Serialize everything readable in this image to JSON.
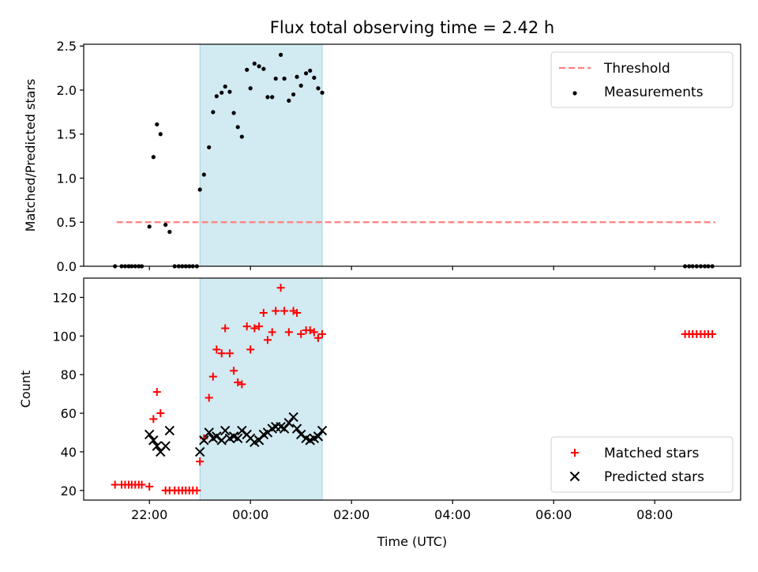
{
  "title": "Flux total observing time = 2.42 h",
  "chart_data": [
    {
      "type": "scatter",
      "ylabel": "Matched/Predicted stars",
      "xlabel": "",
      "x_axis": "time_utc_hours_from_midnight",
      "xlim": [
        -3.3,
        9.7
      ],
      "ylim": [
        0,
        2.52
      ],
      "x_ticks": [
        -2,
        0,
        2,
        4,
        6,
        8
      ],
      "y_ticks": [
        {
          "v": 0.0,
          "label": "0.0"
        },
        {
          "v": 0.5,
          "label": "0.5"
        },
        {
          "v": 1.0,
          "label": "1.0"
        },
        {
          "v": 1.5,
          "label": "1.5"
        },
        {
          "v": 2.0,
          "label": "2.0"
        },
        {
          "v": 2.5,
          "label": "2.5"
        }
      ],
      "shaded_region": {
        "x0": -1.0,
        "x1": 1.42,
        "color": "#add8e6"
      },
      "legend_position": "top-right",
      "threshold": {
        "name": "Threshold",
        "value": 0.5,
        "x_range": [
          -2.65,
          9.2
        ],
        "color": "#ff7f7f",
        "style": "dashed"
      },
      "series": [
        {
          "name": "Measurements",
          "marker": "dot",
          "color": "#000000",
          "points": [
            [
              -2.68,
              0
            ],
            [
              -2.55,
              0
            ],
            [
              -2.48,
              0
            ],
            [
              -2.41,
              0
            ],
            [
              -2.35,
              0
            ],
            [
              -2.28,
              0
            ],
            [
              -2.21,
              0
            ],
            [
              -2.15,
              0
            ],
            [
              -2.0,
              0.45
            ],
            [
              -1.92,
              1.24
            ],
            [
              -1.85,
              1.61
            ],
            [
              -1.78,
              1.5
            ],
            [
              -1.68,
              0.47
            ],
            [
              -1.6,
              0.39
            ],
            [
              -1.5,
              0
            ],
            [
              -1.42,
              0
            ],
            [
              -1.35,
              0
            ],
            [
              -1.28,
              0
            ],
            [
              -1.21,
              0
            ],
            [
              -1.14,
              0
            ],
            [
              -1.06,
              0
            ],
            [
              -1.0,
              0.87
            ],
            [
              -0.92,
              1.04
            ],
            [
              -0.82,
              1.35
            ],
            [
              -0.74,
              1.75
            ],
            [
              -0.67,
              1.93
            ],
            [
              -0.57,
              1.97
            ],
            [
              -0.5,
              2.04
            ],
            [
              -0.41,
              1.98
            ],
            [
              -0.33,
              1.74
            ],
            [
              -0.25,
              1.58
            ],
            [
              -0.17,
              1.47
            ],
            [
              -0.07,
              2.23
            ],
            [
              0.0,
              2.02
            ],
            [
              0.08,
              2.3
            ],
            [
              0.17,
              2.27
            ],
            [
              0.26,
              2.24
            ],
            [
              0.34,
              1.92
            ],
            [
              0.43,
              1.92
            ],
            [
              0.5,
              2.13
            ],
            [
              0.6,
              2.4
            ],
            [
              0.67,
              2.13
            ],
            [
              0.76,
              1.88
            ],
            [
              0.85,
              1.95
            ],
            [
              0.92,
              2.15
            ],
            [
              1.0,
              2.05
            ],
            [
              1.1,
              2.19
            ],
            [
              1.18,
              2.22
            ],
            [
              1.26,
              2.14
            ],
            [
              1.34,
              2.02
            ],
            [
              1.42,
              1.97
            ],
            [
              8.6,
              0
            ],
            [
              8.68,
              0
            ],
            [
              8.75,
              0
            ],
            [
              8.83,
              0
            ],
            [
              8.91,
              0
            ],
            [
              8.99,
              0
            ],
            [
              9.06,
              0
            ],
            [
              9.14,
              0
            ]
          ]
        }
      ]
    },
    {
      "type": "scatter",
      "ylabel": "Count",
      "xlabel": "Time (UTC)",
      "x_axis": "time_utc_hours_from_midnight",
      "xlim": [
        -3.3,
        9.7
      ],
      "ylim": [
        15,
        130
      ],
      "x_ticks": [
        {
          "v": -2,
          "label": "22:00"
        },
        {
          "v": 0,
          "label": "00:00"
        },
        {
          "v": 2,
          "label": "02:00"
        },
        {
          "v": 4,
          "label": "04:00"
        },
        {
          "v": 6,
          "label": "06:00"
        },
        {
          "v": 8,
          "label": "08:00"
        }
      ],
      "y_ticks": [
        {
          "v": 20,
          "label": "20"
        },
        {
          "v": 40,
          "label": "40"
        },
        {
          "v": 60,
          "label": "60"
        },
        {
          "v": 80,
          "label": "80"
        },
        {
          "v": 100,
          "label": "100"
        },
        {
          "v": 120,
          "label": "120"
        }
      ],
      "shaded_region": {
        "x0": -1.0,
        "x1": 1.42,
        "color": "#add8e6"
      },
      "legend_position": "bottom-right",
      "series": [
        {
          "name": "Matched stars",
          "marker": "plus",
          "color": "#ff0000",
          "points": [
            [
              -2.68,
              23
            ],
            [
              -2.55,
              23
            ],
            [
              -2.48,
              23
            ],
            [
              -2.41,
              23
            ],
            [
              -2.35,
              23
            ],
            [
              -2.28,
              23
            ],
            [
              -2.21,
              23
            ],
            [
              -2.15,
              23
            ],
            [
              -2.0,
              22
            ],
            [
              -1.92,
              57
            ],
            [
              -1.85,
              71
            ],
            [
              -1.78,
              60
            ],
            [
              -1.68,
              20
            ],
            [
              -1.6,
              20
            ],
            [
              -1.5,
              20
            ],
            [
              -1.42,
              20
            ],
            [
              -1.35,
              20
            ],
            [
              -1.28,
              20
            ],
            [
              -1.21,
              20
            ],
            [
              -1.14,
              20
            ],
            [
              -1.06,
              20
            ],
            [
              -1.0,
              35
            ],
            [
              -0.92,
              47
            ],
            [
              -0.82,
              68
            ],
            [
              -0.74,
              79
            ],
            [
              -0.67,
              93
            ],
            [
              -0.57,
              91
            ],
            [
              -0.5,
              104
            ],
            [
              -0.41,
              91
            ],
            [
              -0.33,
              82
            ],
            [
              -0.25,
              76
            ],
            [
              -0.17,
              75
            ],
            [
              -0.07,
              105
            ],
            [
              0.0,
              93
            ],
            [
              0.08,
              104
            ],
            [
              0.17,
              105
            ],
            [
              0.26,
              112
            ],
            [
              0.34,
              98
            ],
            [
              0.43,
              102
            ],
            [
              0.5,
              113
            ],
            [
              0.6,
              125
            ],
            [
              0.67,
              113
            ],
            [
              0.76,
              102
            ],
            [
              0.85,
              113
            ],
            [
              0.92,
              112
            ],
            [
              1.0,
              101
            ],
            [
              1.1,
              103
            ],
            [
              1.18,
              103
            ],
            [
              1.26,
              102
            ],
            [
              1.34,
              99
            ],
            [
              1.42,
              101
            ],
            [
              8.6,
              101
            ],
            [
              8.68,
              101
            ],
            [
              8.75,
              101
            ],
            [
              8.83,
              101
            ],
            [
              8.91,
              101
            ],
            [
              8.99,
              101
            ],
            [
              9.06,
              101
            ],
            [
              9.14,
              101
            ]
          ]
        },
        {
          "name": "Predicted stars",
          "marker": "x",
          "color": "#000000",
          "points": [
            [
              -2.0,
              49
            ],
            [
              -1.92,
              46
            ],
            [
              -1.85,
              43
            ],
            [
              -1.78,
              40
            ],
            [
              -1.68,
              43
            ],
            [
              -1.6,
              51
            ],
            [
              -1.0,
              40
            ],
            [
              -0.92,
              46
            ],
            [
              -0.82,
              50
            ],
            [
              -0.74,
              47
            ],
            [
              -0.67,
              48
            ],
            [
              -0.57,
              46
            ],
            [
              -0.5,
              51
            ],
            [
              -0.41,
              47
            ],
            [
              -0.33,
              48
            ],
            [
              -0.25,
              47
            ],
            [
              -0.17,
              51
            ],
            [
              -0.07,
              49
            ],
            [
              0.0,
              47
            ],
            [
              0.08,
              45
            ],
            [
              0.17,
              46
            ],
            [
              0.26,
              49
            ],
            [
              0.34,
              50
            ],
            [
              0.43,
              52
            ],
            [
              0.5,
              53
            ],
            [
              0.6,
              53
            ],
            [
              0.67,
              52
            ],
            [
              0.76,
              55
            ],
            [
              0.85,
              58
            ],
            [
              0.92,
              52
            ],
            [
              1.0,
              49
            ],
            [
              1.1,
              47
            ],
            [
              1.18,
              46
            ],
            [
              1.26,
              47
            ],
            [
              1.34,
              48
            ],
            [
              1.42,
              51
            ]
          ]
        }
      ]
    }
  ]
}
